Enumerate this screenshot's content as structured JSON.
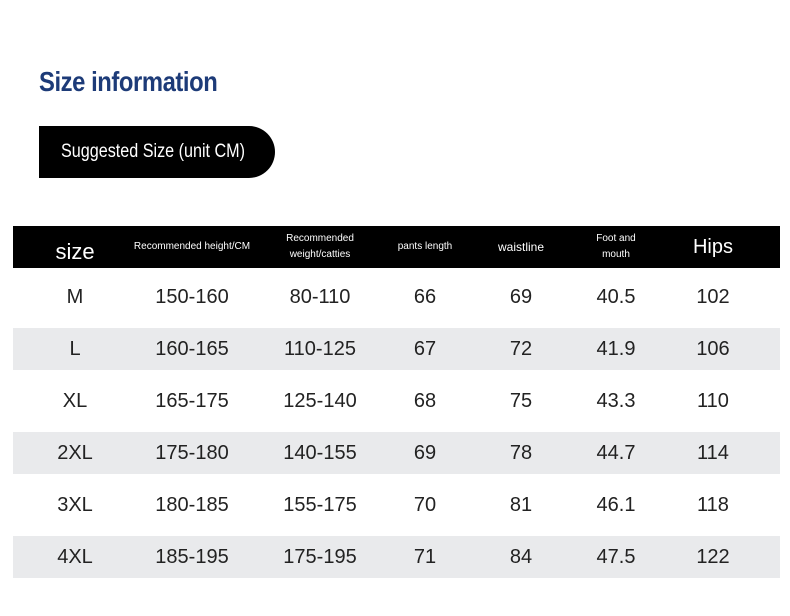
{
  "header": {
    "title": "Size information",
    "badge": "Suggested Size (unit CM)"
  },
  "table": {
    "columns": [
      "size",
      "Recommended height/CM",
      "Recommended weight/catties",
      "pants length",
      "waistline",
      "Foot and mouth",
      "Hips"
    ],
    "rows": [
      [
        "M",
        "150-160",
        "80-110",
        66,
        69,
        40.5,
        102
      ],
      [
        "L",
        "160-165",
        "110-125",
        67,
        72,
        41.9,
        106
      ],
      [
        "XL",
        "165-175",
        "125-140",
        68,
        75,
        43.3,
        110
      ],
      [
        "2XL",
        "175-180",
        "140-155",
        69,
        78,
        44.7,
        114
      ],
      [
        "3XL",
        "180-185",
        "155-175",
        70,
        81,
        46.1,
        118
      ],
      [
        "4XL",
        "185-195",
        "175-195",
        71,
        84,
        47.5,
        122
      ]
    ]
  }
}
